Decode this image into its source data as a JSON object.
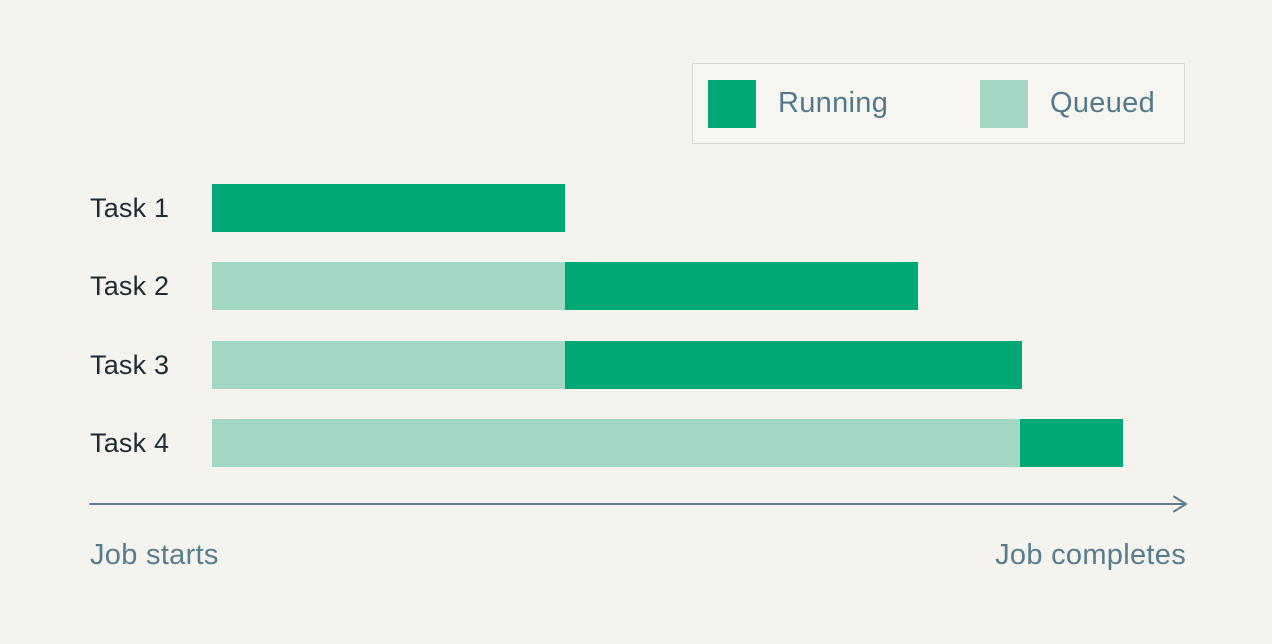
{
  "page": {
    "background": "#f5f3ee"
  },
  "legend": {
    "items": [
      {
        "key": "running",
        "label": "Running",
        "color": "#00a876"
      },
      {
        "key": "queued",
        "label": "Queued",
        "color": "#a2d7c3"
      }
    ]
  },
  "chart_data": {
    "type": "gantt",
    "title": "",
    "categories": [
      "Task 1",
      "Task 2",
      "Task 3",
      "Task 4"
    ],
    "tasks": [
      {
        "label": "Task 1",
        "segments": [
          {
            "state": "running",
            "pct": 36.3
          }
        ]
      },
      {
        "label": "Task 2",
        "segments": [
          {
            "state": "queued",
            "pct": 36.3
          },
          {
            "state": "running",
            "pct": 36.3
          }
        ]
      },
      {
        "label": "Task 3",
        "segments": [
          {
            "state": "queued",
            "pct": 36.3
          },
          {
            "state": "running",
            "pct": 47.0
          }
        ]
      },
      {
        "label": "Task 4",
        "segments": [
          {
            "state": "queued",
            "pct": 83.0
          },
          {
            "state": "running",
            "pct": 10.6
          }
        ]
      }
    ],
    "colors": {
      "running": "#00a876",
      "queued": "#a2d7c3"
    },
    "axis": {
      "start_label": "Job starts",
      "end_label": "Job completes"
    },
    "legend_entries": [
      "Running",
      "Queued"
    ],
    "xlabel": "",
    "ylabel": "",
    "grid": false,
    "legend_position": "top-right"
  }
}
